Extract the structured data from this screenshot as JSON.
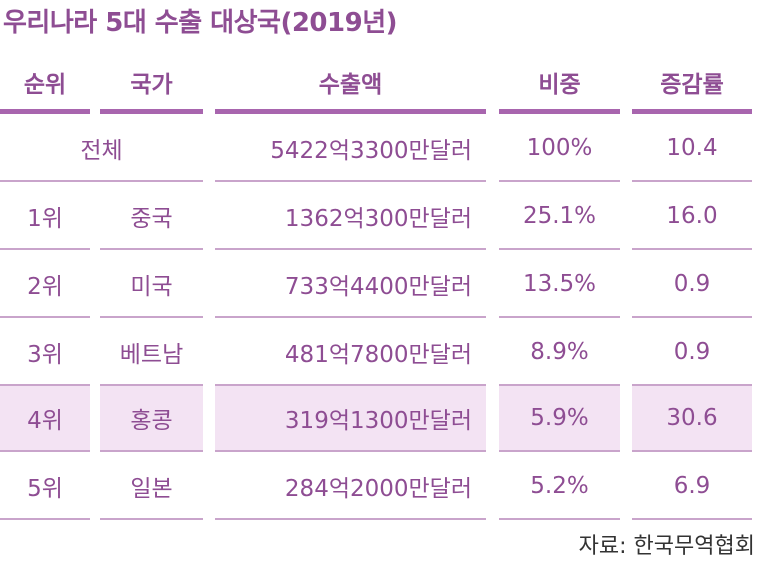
{
  "title": "우리나라 5대 수출 대상국(2019년)",
  "headers": {
    "rank": "순위",
    "country": "국가",
    "amount": "수출액",
    "share": "비중",
    "growth": "증감률"
  },
  "total": {
    "label": "전체",
    "amount": "5422억3300만달러",
    "share": "100%",
    "growth": "10.4"
  },
  "rows": [
    {
      "rank": "1위",
      "country": "중국",
      "amount": "1362억300만달러",
      "share": "25.1%",
      "growth": "16.0"
    },
    {
      "rank": "2위",
      "country": "미국",
      "amount": "733억4400만달러",
      "share": "13.5%",
      "growth": "0.9"
    },
    {
      "rank": "3위",
      "country": "베트남",
      "amount": "481억7800만달러",
      "share": "8.9%",
      "growth": "0.9"
    },
    {
      "rank": "4위",
      "country": "홍콩",
      "amount": "319억1300만달러",
      "share": "5.9%",
      "growth": "30.6"
    },
    {
      "rank": "5위",
      "country": "일본",
      "amount": "284억2000만달러",
      "share": "5.2%",
      "growth": "6.9"
    }
  ],
  "highlight_row_rank": "4위",
  "source": "자료: 한국무역협회",
  "colors": {
    "text": "#8e4d93",
    "rule": "#c9a4cb",
    "header_rule": "#a865ae",
    "highlight": "#f3e3f3"
  }
}
